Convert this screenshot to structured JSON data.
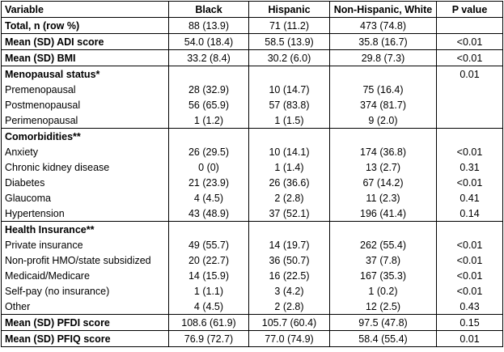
{
  "columns": [
    "Variable",
    "Black",
    "Hispanic",
    "Non-Hispanic, White",
    "P value"
  ],
  "rows": [
    {
      "kind": "single",
      "bold": true,
      "cells": [
        "Total, n (row %)",
        "88 (13.9)",
        "71 (11.2)",
        "473 (74.8)",
        ""
      ]
    },
    {
      "kind": "single",
      "bold": true,
      "cells": [
        "Mean (SD) ADI score",
        "54.0 (18.4)",
        "58.5 (13.9)",
        "35.8 (16.7)",
        "<0.01"
      ]
    },
    {
      "kind": "single",
      "bold": true,
      "cells": [
        "Mean (SD) BMI",
        "33.2 (8.4)",
        "30.2 (6.0)",
        "29.8 (7.3)",
        "<0.01"
      ]
    },
    {
      "kind": "sec-first",
      "bold": true,
      "cells": [
        "Menopausal status*",
        "",
        "",
        "",
        "0.01"
      ]
    },
    {
      "kind": "mid",
      "bold": false,
      "cells": [
        "Premenopausal",
        "28 (32.9)",
        "10 (14.7)",
        "75 (16.4)",
        ""
      ]
    },
    {
      "kind": "mid",
      "bold": false,
      "cells": [
        "Postmenopausal",
        "56 (65.9)",
        "57 (83.8)",
        "374 (81.7)",
        ""
      ]
    },
    {
      "kind": "sec-last",
      "bold": false,
      "cells": [
        "Perimenopausal",
        "1 (1.2)",
        "1 (1.5)",
        "9 (2.0)",
        ""
      ]
    },
    {
      "kind": "sec-first",
      "bold": true,
      "cells": [
        "Comorbidities**",
        "",
        "",
        "",
        ""
      ]
    },
    {
      "kind": "mid",
      "bold": false,
      "cells": [
        "Anxiety",
        "26 (29.5)",
        "10 (14.1)",
        "174 (36.8)",
        "<0.01"
      ]
    },
    {
      "kind": "mid",
      "bold": false,
      "cells": [
        "Chronic kidney disease",
        "0 (0)",
        "1 (1.4)",
        "13 (2.7)",
        "0.31"
      ]
    },
    {
      "kind": "mid",
      "bold": false,
      "cells": [
        "Diabetes",
        "21 (23.9)",
        "26 (36.6)",
        "67 (14.2)",
        "<0.01"
      ]
    },
    {
      "kind": "mid",
      "bold": false,
      "cells": [
        "Glaucoma",
        "4 (4.5)",
        "2 (2.8)",
        "11 (2.3)",
        "0.41"
      ]
    },
    {
      "kind": "sec-last",
      "bold": false,
      "cells": [
        "Hypertension",
        "43 (48.9)",
        "37 (52.1)",
        "196 (41.4)",
        "0.14"
      ]
    },
    {
      "kind": "sec-first",
      "bold": true,
      "cells": [
        "Health Insurance**",
        "",
        "",
        "",
        ""
      ]
    },
    {
      "kind": "mid",
      "bold": false,
      "cells": [
        "Private insurance",
        "49 (55.7)",
        "14 (19.7)",
        "262 (55.4)",
        "<0.01"
      ]
    },
    {
      "kind": "mid",
      "bold": false,
      "cells": [
        "Non-profit HMO/state subsidized",
        "20 (22.7)",
        "36 (50.7)",
        "37 (7.8)",
        "<0.01"
      ]
    },
    {
      "kind": "mid",
      "bold": false,
      "cells": [
        "Medicaid/Medicare",
        "14 (15.9)",
        "16 (22.5)",
        "167 (35.3)",
        "<0.01"
      ]
    },
    {
      "kind": "mid",
      "bold": false,
      "cells": [
        "Self-pay (no insurance)",
        "1 (1.1)",
        "3 (4.2)",
        "1 (0.2)",
        "<0.01"
      ]
    },
    {
      "kind": "sec-last",
      "bold": false,
      "cells": [
        "Other",
        "4 (4.5)",
        "2 (2.8)",
        "12 (2.5)",
        "0.43"
      ]
    },
    {
      "kind": "single",
      "bold": true,
      "cells": [
        "Mean (SD) PFDI score",
        "108.6 (61.9)",
        "105.7 (60.4)",
        "97.5 (47.8)",
        "0.15"
      ]
    },
    {
      "kind": "single",
      "bold": true,
      "cells": [
        "Mean (SD) PFIQ score",
        "76.9 (72.7)",
        "77.0 (74.9)",
        "58.4 (55.4)",
        "0.01"
      ]
    }
  ]
}
